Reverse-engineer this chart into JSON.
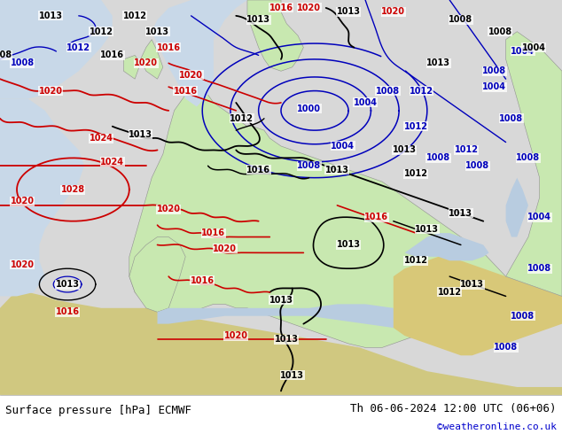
{
  "title_left": "Surface pressure [hPa] ECMWF",
  "title_right": "Th 06-06-2024 12:00 UTC (06+06)",
  "watermark": "©weatheronline.co.uk",
  "watermark_color": "#0000cc",
  "bg_color": "#c8e8b0",
  "ocean_color": "#d8d8d8",
  "land_color": "#c8e8b0",
  "africa_color": "#d4c890",
  "figsize": [
    6.34,
    4.9
  ],
  "dpi": 100
}
